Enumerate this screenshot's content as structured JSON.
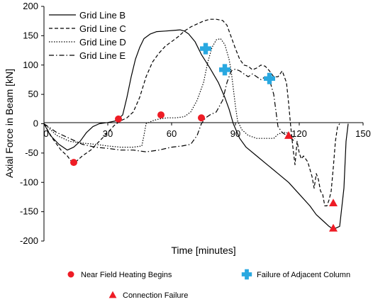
{
  "chart_data": {
    "type": "line",
    "xlabel": "Time [minutes]",
    "ylabel": "Axial Force in Beam [kN]",
    "xlim": [
      0,
      150
    ],
    "ylim": [
      -200,
      200
    ],
    "xticks": [
      "0",
      "30",
      "60",
      "90",
      "120",
      "150"
    ],
    "yticks": [
      "200",
      "150",
      "100",
      "50",
      "0",
      "-50",
      "-100",
      "-150",
      "-200"
    ],
    "grid": false,
    "legend_position": "top-left",
    "series": [
      {
        "name": "Grid Line B",
        "style": "solid",
        "points": [
          [
            0,
            0
          ],
          [
            3,
            -20
          ],
          [
            7,
            -35
          ],
          [
            11,
            -45
          ],
          [
            14,
            -40
          ],
          [
            17,
            -30
          ],
          [
            20,
            -15
          ],
          [
            23,
            -5
          ],
          [
            26,
            0
          ],
          [
            30,
            2
          ],
          [
            34,
            5
          ],
          [
            37,
            15
          ],
          [
            39,
            45
          ],
          [
            41,
            80
          ],
          [
            43,
            110
          ],
          [
            45,
            130
          ],
          [
            47,
            145
          ],
          [
            50,
            153
          ],
          [
            53,
            157
          ],
          [
            57,
            158
          ],
          [
            61,
            159
          ],
          [
            64,
            160
          ],
          [
            66,
            158
          ],
          [
            68,
            153
          ],
          [
            71,
            140
          ],
          [
            74,
            118
          ],
          [
            78,
            95
          ],
          [
            82,
            70
          ],
          [
            85,
            45
          ],
          [
            87,
            25
          ],
          [
            89,
            0
          ],
          [
            92,
            -25
          ],
          [
            95,
            -40
          ],
          [
            100,
            -55
          ],
          [
            105,
            -70
          ],
          [
            110,
            -85
          ],
          [
            115,
            -100
          ],
          [
            120,
            -120
          ],
          [
            125,
            -140
          ],
          [
            128,
            -155
          ],
          [
            131,
            -165
          ],
          [
            134,
            -175
          ],
          [
            136,
            -180
          ],
          [
            139,
            -175
          ],
          [
            141,
            -110
          ],
          [
            142,
            -30
          ],
          [
            143,
            0
          ]
        ]
      },
      {
        "name": "Grid Line C",
        "style": "dashed",
        "points": [
          [
            0,
            0
          ],
          [
            4,
            -25
          ],
          [
            8,
            -45
          ],
          [
            11,
            -55
          ],
          [
            13,
            -65
          ],
          [
            15,
            -65
          ],
          [
            18,
            -55
          ],
          [
            22,
            -45
          ],
          [
            26,
            -30
          ],
          [
            30,
            -15
          ],
          [
            33,
            -3
          ],
          [
            36,
            5
          ],
          [
            39,
            10
          ],
          [
            42,
            20
          ],
          [
            45,
            45
          ],
          [
            48,
            80
          ],
          [
            51,
            105
          ],
          [
            54,
            120
          ],
          [
            57,
            132
          ],
          [
            60,
            140
          ],
          [
            63,
            148
          ],
          [
            66,
            158
          ],
          [
            69,
            165
          ],
          [
            72,
            170
          ],
          [
            75,
            175
          ],
          [
            78,
            178
          ],
          [
            81,
            178
          ],
          [
            84,
            176
          ],
          [
            86,
            168
          ],
          [
            88,
            148
          ],
          [
            90,
            128
          ],
          [
            92,
            110
          ],
          [
            94,
            100
          ],
          [
            96,
            98
          ],
          [
            98,
            92
          ],
          [
            100,
            95
          ],
          [
            102,
            100
          ],
          [
            104,
            98
          ],
          [
            106,
            90
          ],
          [
            108,
            80
          ],
          [
            110,
            80
          ],
          [
            112,
            90
          ],
          [
            114,
            70
          ],
          [
            115,
            35
          ],
          [
            116,
            -5
          ],
          [
            117,
            -40
          ],
          [
            118,
            -70
          ],
          [
            119,
            -30
          ],
          [
            120,
            -50
          ],
          [
            121,
            -60
          ],
          [
            122,
            -55
          ],
          [
            123,
            -60
          ],
          [
            124,
            -65
          ],
          [
            126,
            -90
          ],
          [
            127,
            -110
          ],
          [
            128,
            -85
          ],
          [
            129,
            -95
          ],
          [
            130,
            -115
          ],
          [
            131,
            -120
          ],
          [
            132,
            -140
          ],
          [
            133,
            -140
          ],
          [
            134,
            -130
          ],
          [
            135,
            -115
          ],
          [
            136,
            -75
          ],
          [
            137,
            -30
          ],
          [
            138,
            -5
          ],
          [
            139,
            0
          ]
        ]
      },
      {
        "name": "Grid Line D",
        "style": "dotted",
        "points": [
          [
            0,
            0
          ],
          [
            6,
            -20
          ],
          [
            12,
            -30
          ],
          [
            18,
            -33
          ],
          [
            24,
            -35
          ],
          [
            30,
            -38
          ],
          [
            36,
            -40
          ],
          [
            42,
            -40
          ],
          [
            46,
            -38
          ],
          [
            47,
            -20
          ],
          [
            48,
            0
          ],
          [
            51,
            5
          ],
          [
            54,
            8
          ],
          [
            58,
            10
          ],
          [
            62,
            10
          ],
          [
            66,
            12
          ],
          [
            69,
            20
          ],
          [
            72,
            40
          ],
          [
            75,
            70
          ],
          [
            77,
            105
          ],
          [
            79,
            130
          ],
          [
            81,
            143
          ],
          [
            83,
            145
          ],
          [
            85,
            135
          ],
          [
            87,
            110
          ],
          [
            88,
            90
          ],
          [
            89,
            60
          ],
          [
            90,
            30
          ],
          [
            91,
            5
          ],
          [
            93,
            -10
          ],
          [
            96,
            -20
          ],
          [
            100,
            -25
          ],
          [
            104,
            -25
          ],
          [
            108,
            -25
          ],
          [
            110,
            -18
          ],
          [
            112,
            -15
          ],
          [
            114,
            -15
          ],
          [
            116,
            -20
          ],
          [
            118,
            -25
          ]
        ]
      },
      {
        "name": "Grid Line E",
        "style": "dashdot",
        "points": [
          [
            0,
            0
          ],
          [
            6,
            -15
          ],
          [
            12,
            -25
          ],
          [
            18,
            -35
          ],
          [
            24,
            -40
          ],
          [
            30,
            -42
          ],
          [
            36,
            -45
          ],
          [
            42,
            -45
          ],
          [
            48,
            -48
          ],
          [
            54,
            -45
          ],
          [
            60,
            -40
          ],
          [
            65,
            -38
          ],
          [
            69,
            -35
          ],
          [
            72,
            -20
          ],
          [
            74,
            0
          ],
          [
            76,
            10
          ],
          [
            78,
            15
          ],
          [
            81,
            20
          ],
          [
            84,
            40
          ],
          [
            86,
            70
          ],
          [
            88,
            90
          ],
          [
            90,
            93
          ],
          [
            92,
            90
          ],
          [
            94,
            85
          ],
          [
            96,
            80
          ],
          [
            98,
            85
          ],
          [
            100,
            80
          ],
          [
            102,
            75
          ],
          [
            104,
            80
          ],
          [
            106,
            75
          ],
          [
            108,
            50
          ],
          [
            110,
            -5
          ],
          [
            112,
            -15
          ],
          [
            114,
            -20
          ],
          [
            116,
            -25
          ],
          [
            118,
            -30
          ]
        ]
      }
    ],
    "markers": [
      {
        "name": "Near Field Heating Begins",
        "shape": "circle",
        "color": "#ee1c25",
        "points": [
          [
            14,
            -66
          ],
          [
            35,
            8
          ],
          [
            55,
            15
          ],
          [
            74,
            10
          ]
        ]
      },
      {
        "name": "Failure of Adjacent Column",
        "shape": "cross",
        "color": "#29a8e0",
        "points": [
          [
            76,
            128
          ],
          [
            85,
            92
          ],
          [
            106,
            77
          ]
        ]
      },
      {
        "name": "Connection Failure",
        "shape": "triangle",
        "color": "#ee1c25",
        "points": [
          [
            115,
            -20
          ],
          [
            136,
            -135
          ],
          [
            136,
            -178
          ]
        ]
      }
    ]
  }
}
